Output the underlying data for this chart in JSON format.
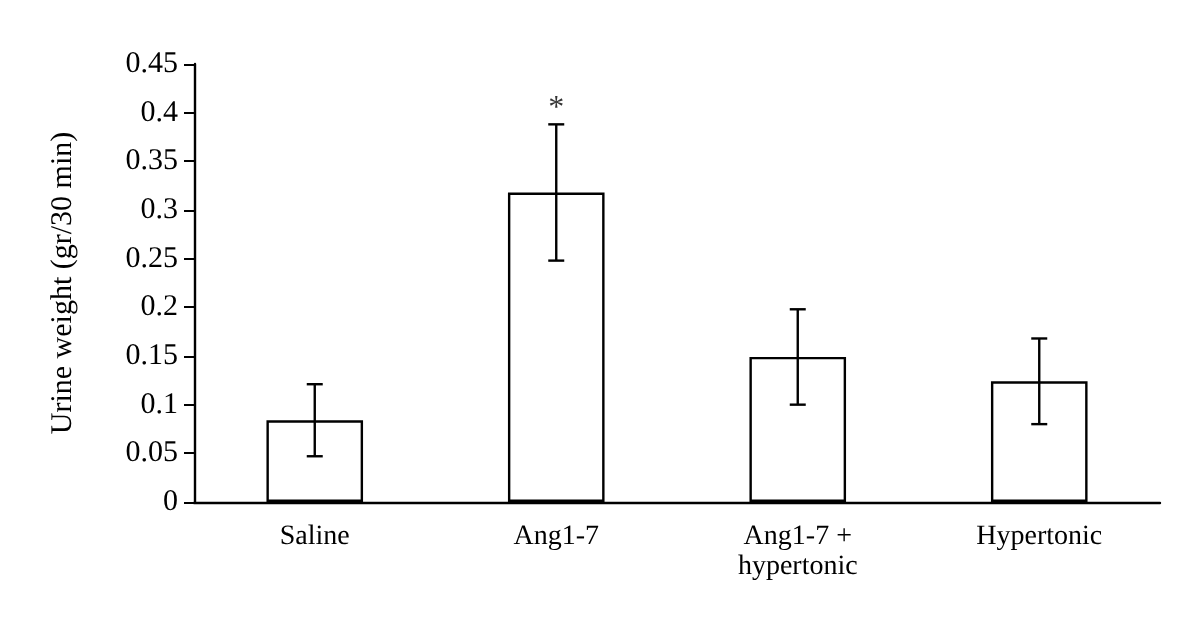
{
  "chart_data": {
    "type": "bar",
    "ylabel": "Urine weight (gr/30 min)",
    "categories": [
      "Saline",
      "Ang1-7",
      "Ang1-7 +\nhypertonic",
      "Hypertonic"
    ],
    "series": [
      {
        "color": "#ffffff",
        "values": [
          0.084,
          0.318,
          0.149,
          0.124
        ],
        "errors": [
          0.037,
          0.07,
          0.049,
          0.044
        ]
      }
    ],
    "ylim": [
      0,
      0.45
    ],
    "yticks": [
      0,
      0.05,
      0.1,
      0.15,
      0.2,
      0.25,
      0.3,
      0.35,
      0.4,
      0.45
    ],
    "grid": false,
    "annotations": [
      {
        "text": "*",
        "x": "Ang1-7",
        "y": 0.388
      }
    ]
  }
}
